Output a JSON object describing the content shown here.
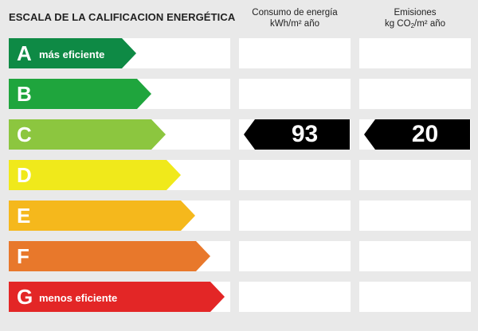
{
  "title": "ESCALA DE LA CALIFICACION ENERGÉTICA",
  "columns": {
    "consumo": {
      "line1": "Consumo de energía",
      "line2": "kWh/m² año"
    },
    "emisiones": {
      "line1": "Emisiones",
      "line2_pre": "kg CO",
      "line2_sub": "2",
      "line2_post": "/m² año"
    }
  },
  "ratings": [
    {
      "letter": "A",
      "label": "más eficiente",
      "color": "#0e8a45"
    },
    {
      "letter": "B",
      "label": "",
      "color": "#1fa53d"
    },
    {
      "letter": "C",
      "label": "",
      "color": "#8cc63f"
    },
    {
      "letter": "D",
      "label": "",
      "color": "#f0e91b"
    },
    {
      "letter": "E",
      "label": "",
      "color": "#f5b81c"
    },
    {
      "letter": "F",
      "label": "",
      "color": "#e8782b"
    },
    {
      "letter": "G",
      "label": "menos eficiente",
      "color": "#e32626"
    }
  ],
  "result": {
    "rating": "C",
    "consumo_value": "93",
    "emisiones_value": "20",
    "marker_color": "#000000"
  }
}
